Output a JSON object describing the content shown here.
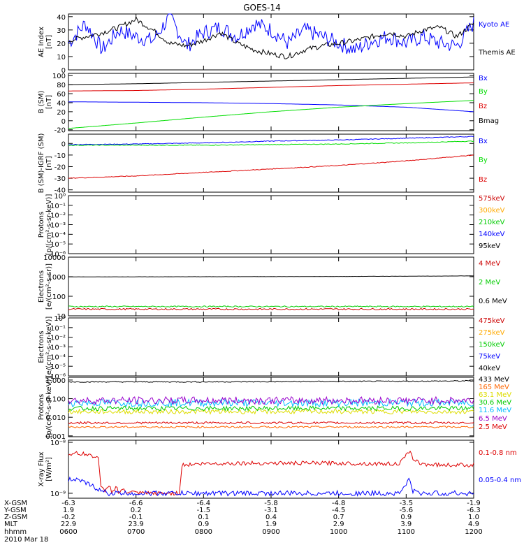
{
  "title": "GOES-14",
  "x_ticks": [
    "0600",
    "0700",
    "0800",
    "0900",
    "1000",
    "1100",
    "1200"
  ],
  "ephemeris": {
    "rows": [
      {
        "label": "X-GSM",
        "values": [
          "-6.3",
          "-6.6",
          "-6.4",
          "-5.8",
          "-4.8",
          "-3.5",
          "-1.9"
        ]
      },
      {
        "label": "Y-GSM",
        "values": [
          "1.9",
          "0.2",
          "-1.5",
          "-3.1",
          "-4.5",
          "-5.6",
          "-6.3"
        ]
      },
      {
        "label": "Z-GSM",
        "values": [
          "-0.2",
          "-0.1",
          "0.1",
          "0.4",
          "0.7",
          "0.9",
          "1.0"
        ]
      },
      {
        "label": "MLT",
        "values": [
          "22.9",
          "23.9",
          "0.9",
          "1.9",
          "2.9",
          "3.9",
          "4.9"
        ]
      },
      {
        "label": "hhmm",
        "values": [
          "0600",
          "0700",
          "0800",
          "0900",
          "1000",
          "1100",
          "1200"
        ]
      }
    ],
    "date": "2010 Mar 18"
  },
  "chart_data": [
    {
      "type": "line",
      "panel": "ae",
      "ylabel": [
        "AE Index",
        "[nT]"
      ],
      "ylim": [
        0,
        42
      ],
      "yscale": "linear",
      "yticks": [
        {
          "v": 0,
          "t": "0"
        },
        {
          "v": 10,
          "t": "10"
        },
        {
          "v": 20,
          "t": "20"
        },
        {
          "v": 30,
          "t": "30"
        },
        {
          "v": 40,
          "t": "40"
        }
      ],
      "x": [
        6.0,
        6.25,
        6.5,
        6.75,
        7.0,
        7.25,
        7.5,
        7.75,
        8.0,
        8.25,
        8.5,
        8.75,
        9.0,
        9.25,
        9.5,
        9.75,
        10.0,
        10.25,
        10.5,
        10.75,
        11.0,
        11.25,
        11.5,
        11.75,
        12.0
      ],
      "series": [
        {
          "name": "Kyoto AE",
          "color": "#0000ff",
          "noise": 6,
          "values": [
            20,
            35,
            15,
            30,
            25,
            22,
            40,
            18,
            28,
            32,
            25,
            35,
            30,
            20,
            30,
            25,
            20,
            15,
            22,
            25,
            20,
            25,
            20,
            18,
            35
          ]
        },
        {
          "name": "Themis AE",
          "color": "#000000",
          "noise": 2,
          "values": [
            22,
            25,
            28,
            32,
            38,
            30,
            20,
            18,
            22,
            28,
            20,
            15,
            12,
            10,
            15,
            18,
            20,
            22,
            25,
            28,
            25,
            30,
            32,
            25,
            35
          ]
        }
      ]
    },
    {
      "type": "line",
      "panel": "b_sm",
      "ylabel": [
        "B (SM)",
        "[nT]"
      ],
      "ylim": [
        -22,
        105
      ],
      "yscale": "linear",
      "yticks": [
        {
          "v": -20,
          "t": "-20"
        },
        {
          "v": 0,
          "t": "0"
        },
        {
          "v": 20,
          "t": "20"
        },
        {
          "v": 40,
          "t": "40"
        },
        {
          "v": 60,
          "t": "60"
        },
        {
          "v": 80,
          "t": "80"
        },
        {
          "v": 100,
          "t": "100"
        }
      ],
      "x": [
        6,
        7,
        8,
        9,
        10,
        11,
        12
      ],
      "series": [
        {
          "name": "Bx",
          "color": "#0000ff",
          "noise": 0,
          "values": [
            42,
            41,
            40,
            38,
            35,
            30,
            20
          ]
        },
        {
          "name": "By",
          "color": "#00dd00",
          "noise": 0,
          "values": [
            -17,
            -5,
            8,
            20,
            30,
            38,
            45
          ]
        },
        {
          "name": "Bz",
          "color": "#dd0000",
          "noise": 0,
          "values": [
            66,
            67,
            70,
            74,
            78,
            81,
            84
          ]
        },
        {
          "name": "Bmag",
          "color": "#000000",
          "noise": 0,
          "values": [
            80,
            82,
            85,
            88,
            91,
            94,
            97
          ]
        }
      ]
    },
    {
      "type": "line",
      "panel": "b_igrf",
      "ylabel": [
        "B (SM)-IGRF (SM)",
        "[nT]"
      ],
      "ylim": [
        -42,
        8
      ],
      "yscale": "linear",
      "yticks": [
        {
          "v": -40,
          "t": "-40"
        },
        {
          "v": -30,
          "t": "-30"
        },
        {
          "v": -20,
          "t": "-20"
        },
        {
          "v": -10,
          "t": "-10"
        },
        {
          "v": 0,
          "t": "0"
        }
      ],
      "x": [
        6,
        7,
        8,
        9,
        10,
        11,
        12
      ],
      "series": [
        {
          "name": "Bx",
          "color": "#0000ff",
          "noise": 0.3,
          "values": [
            -1,
            -0.5,
            0.5,
            2,
            3,
            4.5,
            6
          ]
        },
        {
          "name": "By",
          "color": "#00dd00",
          "noise": 0.3,
          "values": [
            -1.5,
            -1.5,
            -1.5,
            -1,
            -0.5,
            0.5,
            2
          ]
        },
        {
          "name": "Bz",
          "color": "#dd0000",
          "noise": 0.3,
          "values": [
            -30,
            -28,
            -25,
            -22,
            -19,
            -15,
            -10
          ]
        }
      ]
    },
    {
      "type": "line",
      "panel": "protons_low",
      "ylabel": [
        "Protons",
        "[p/(cm²-s-sr-keV)]"
      ],
      "ylim": [
        1e-06,
        1
      ],
      "yscale": "log",
      "yticks": [
        {
          "v": 1e-06,
          "t": "10⁻⁶"
        },
        {
          "v": 1e-05,
          "t": "10⁻⁵"
        },
        {
          "v": 0.0001,
          "t": "10⁻⁴"
        },
        {
          "v": 0.001,
          "t": "10⁻³"
        },
        {
          "v": 0.01,
          "t": "10⁻²"
        },
        {
          "v": 0.1,
          "t": "10⁻¹"
        },
        {
          "v": 1,
          "t": "10⁰"
        }
      ],
      "x": [],
      "series": [
        {
          "name": "575keV",
          "color": "#cc0000",
          "values": []
        },
        {
          "name": "300keV",
          "color": "#ffaa00",
          "values": []
        },
        {
          "name": "210keV",
          "color": "#00cc00",
          "values": []
        },
        {
          "name": "140keV",
          "color": "#0000ff",
          "values": []
        },
        {
          "name": "95keV",
          "color": "#000000",
          "values": []
        }
      ]
    },
    {
      "type": "line",
      "panel": "electrons_high",
      "ylabel": [
        "Electrons",
        "[e/(cm²-s-sr)]"
      ],
      "ylim": [
        10,
        10000
      ],
      "yscale": "log",
      "yticks": [
        {
          "v": 10,
          "t": "10"
        },
        {
          "v": 100,
          "t": "100"
        },
        {
          "v": 1000,
          "t": "1000"
        },
        {
          "v": 10000,
          "t": "10000"
        }
      ],
      "x": [
        6,
        7,
        8,
        9,
        10,
        11,
        12
      ],
      "series": [
        {
          "name": "4 MeV",
          "color": "#cc0000",
          "noise": 0.04,
          "values": [
            22,
            22,
            22,
            22,
            22,
            22,
            22
          ]
        },
        {
          "name": "2 MeV",
          "color": "#00cc00",
          "noise": 0.03,
          "values": [
            30,
            30,
            30,
            30,
            30,
            30,
            30
          ]
        },
        {
          "name": "0.6 MeV",
          "color": "#000000",
          "noise": 0.004,
          "values": [
            980,
            990,
            1000,
            1010,
            1030,
            1060,
            1100
          ]
        }
      ]
    },
    {
      "type": "line",
      "panel": "electrons_low",
      "ylabel": [
        "Electrons",
        "[e/(cm²-s-sr-keV)]"
      ],
      "ylim": [
        1e-06,
        1
      ],
      "yscale": "log",
      "yticks": [
        {
          "v": 1e-06,
          "t": "10⁻⁶"
        },
        {
          "v": 1e-05,
          "t": "10⁻⁵"
        },
        {
          "v": 0.0001,
          "t": "10⁻⁴"
        },
        {
          "v": 0.001,
          "t": "10⁻³"
        },
        {
          "v": 0.01,
          "t": "10⁻²"
        },
        {
          "v": 0.1,
          "t": "10⁻¹"
        },
        {
          "v": 1,
          "t": "10⁰"
        }
      ],
      "x": [],
      "series": [
        {
          "name": "475keV",
          "color": "#cc0000",
          "values": []
        },
        {
          "name": "275keV",
          "color": "#ffaa00",
          "values": []
        },
        {
          "name": "150keV",
          "color": "#00cc00",
          "values": []
        },
        {
          "name": "75keV",
          "color": "#0000ff",
          "values": []
        },
        {
          "name": "40keV",
          "color": "#000000",
          "values": []
        }
      ]
    },
    {
      "type": "line",
      "panel": "protons_high",
      "ylabel": [
        "Protons",
        "[p/(cm²-s-sr-keV)]"
      ],
      "ylim": [
        0.0009,
        1.4
      ],
      "yscale": "log",
      "yticks": [
        {
          "v": 0.001,
          "t": "0.001"
        },
        {
          "v": 0.01,
          "t": "0.010"
        },
        {
          "v": 0.1,
          "t": "0.100"
        },
        {
          "v": 1,
          "t": "1.000"
        }
      ],
      "x": [
        6,
        7,
        8,
        9,
        10,
        11,
        12
      ],
      "series": [
        {
          "name": "433 MeV",
          "color": "#000000",
          "noise": 0.03,
          "values": [
            0.8,
            0.8,
            0.8,
            0.82,
            0.84,
            0.86,
            0.9
          ]
        },
        {
          "name": "165 MeV",
          "color": "#ff6600",
          "noise": 0.05,
          "values": [
            0.003,
            0.003,
            0.003,
            0.003,
            0.003,
            0.003,
            0.003
          ]
        },
        {
          "name": "63.1 MeV",
          "color": "#dddd00",
          "noise": 0.12,
          "values": [
            0.02,
            0.02,
            0.02,
            0.02,
            0.02,
            0.02,
            0.02
          ]
        },
        {
          "name": "30.6 MeV",
          "color": "#00cc00",
          "noise": 0.12,
          "values": [
            0.03,
            0.03,
            0.03,
            0.03,
            0.03,
            0.03,
            0.03
          ]
        },
        {
          "name": "11.6 MeV",
          "color": "#00bbff",
          "noise": 0.2,
          "values": [
            0.06,
            0.06,
            0.06,
            0.06,
            0.06,
            0.06,
            0.06
          ]
        },
        {
          "name": "6.5 MeV",
          "color": "#9900cc",
          "noise": 0.2,
          "values": [
            0.08,
            0.08,
            0.08,
            0.08,
            0.08,
            0.08,
            0.08
          ]
        },
        {
          "name": "2.5 MeV",
          "color": "#dd0000",
          "noise": 0.06,
          "values": [
            0.005,
            0.005,
            0.005,
            0.005,
            0.005,
            0.005,
            0.005
          ]
        }
      ]
    },
    {
      "type": "line",
      "panel": "xray",
      "ylabel": [
        "X-ray Flux",
        "[W/m²]"
      ],
      "ylim": [
        8e-10,
        1.1e-08
      ],
      "yscale": "log",
      "yticks": [
        {
          "v": 1e-09,
          "t": "10⁻⁹"
        },
        {
          "v": 1e-08,
          "t": "10⁻⁸"
        }
      ],
      "x": [
        6.0,
        6.2,
        6.35,
        6.45,
        6.47,
        6.55,
        6.6,
        6.65,
        6.7,
        6.75,
        6.8,
        6.85,
        6.9,
        7.0,
        7.5,
        7.65,
        7.67,
        7.7,
        8.0,
        8.5,
        9.0,
        9.5,
        10.0,
        10.5,
        10.9,
        11.05,
        11.1,
        11.2,
        11.5,
        12.0
      ],
      "series": [
        {
          "name": "0.1-0.8 nm",
          "color": "#dd0000",
          "noise": 0.04,
          "values": [
            6e-09,
            6e-09,
            5.5e-09,
            5e-09,
            1.3e-09,
            1.1e-09,
            1.5e-09,
            1e-09,
            1.4e-09,
            1e-09,
            1.2e-09,
            1e-09,
            1.1e-09,
            1e-09,
            1e-09,
            1e-09,
            3.5e-09,
            3.6e-09,
            3.8e-09,
            3.9e-09,
            3.9e-09,
            3.9e-09,
            3.9e-09,
            3.8e-09,
            3.8e-09,
            6.5e-09,
            5e-09,
            3.8e-09,
            3.6e-09,
            3.6e-09
          ]
        },
        {
          "name": "0.05-0.4 nm",
          "color": "#0000ff",
          "noise": 0.05,
          "values": [
            1.9e-09,
            1.7e-09,
            1.4e-09,
            1.2e-09,
            1.1e-09,
            1.05e-09,
            1e-09,
            1e-09,
            1e-09,
            1e-09,
            1e-09,
            1e-09,
            1e-09,
            1e-09,
            1e-09,
            1e-09,
            1e-09,
            1e-09,
            1e-09,
            1e-09,
            1e-09,
            1e-09,
            1e-09,
            1e-09,
            1e-09,
            1.9e-09,
            1.1e-09,
            1e-09,
            1e-09,
            1e-09
          ]
        }
      ]
    }
  ]
}
